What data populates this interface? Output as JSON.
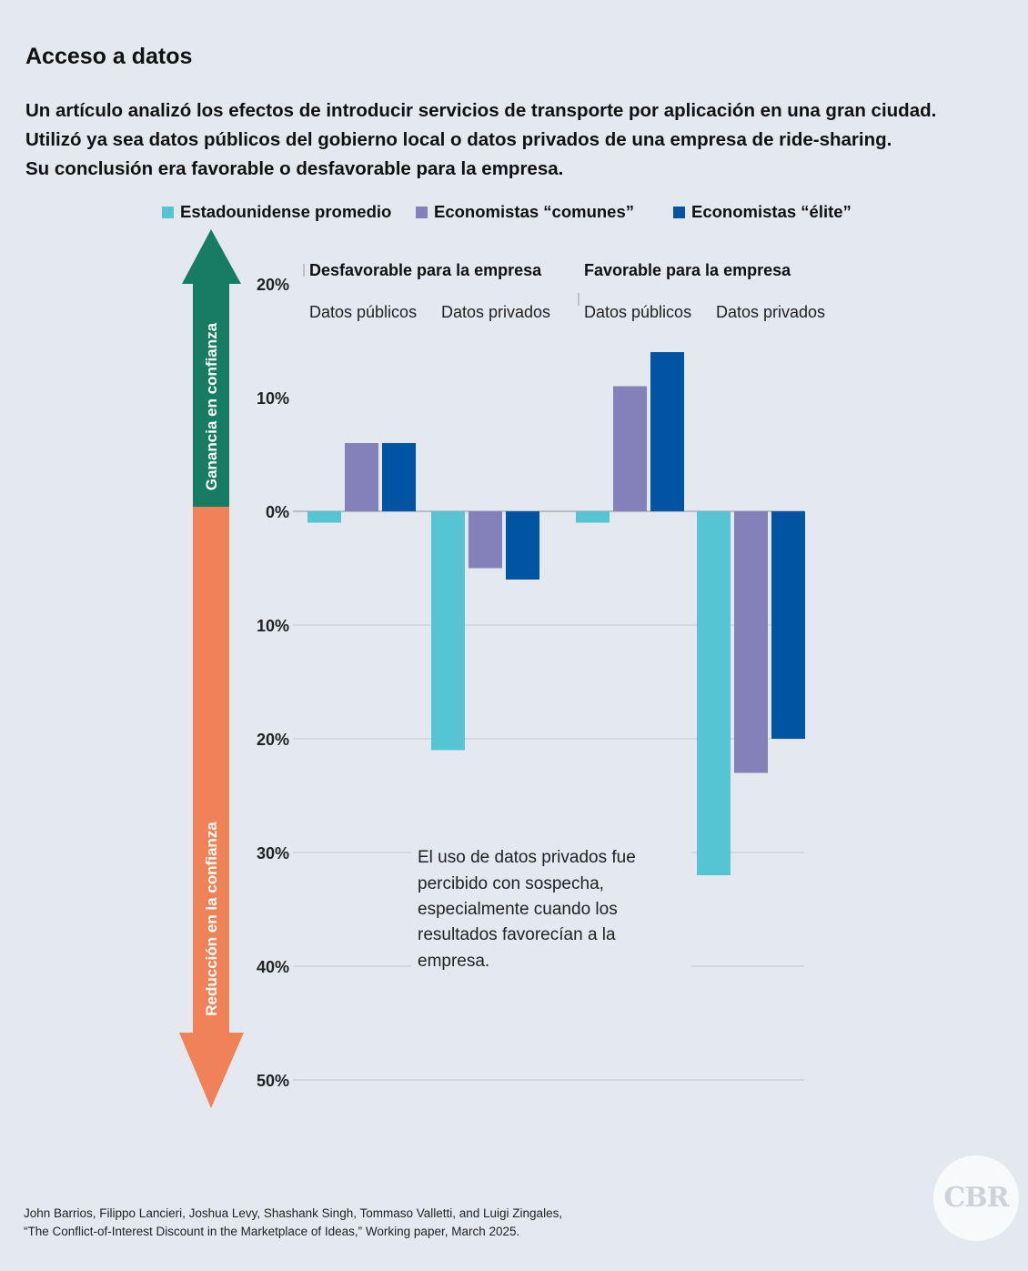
{
  "title": "Acceso a datos",
  "description": [
    "Un artículo analizó los efectos de introducir servicios de transporte por aplicación en una gran ciudad.",
    "Utilizó ya sea datos públicos del gobierno local o datos privados de una empresa de ride-sharing.",
    " Su conclusión era favorable o desfavorable para la empresa."
  ],
  "legend": [
    {
      "label": "Estadounidense promedio",
      "color": "#56c5d3"
    },
    {
      "label": "Economistas “comunes”",
      "color": "#8480ba"
    },
    {
      "label": "Economistas “élite”",
      "color": "#0054a4"
    }
  ],
  "arrows": {
    "up_label": "Ganancia en confianza",
    "down_label": "Reducción en la confianza",
    "up_color": "#177d62",
    "down_color": "#f0825a"
  },
  "annotation": [
    "El uso de datos privados fue",
    "percibido con sospecha,",
    "especialmente cuando los",
    "resultados favorecían a la",
    "empresa."
  ],
  "source": [
    "John Barrios, Filippo Lancieri, Joshua Levy, Shashank Singh, Tommaso Valletti, and Luigi Zingales,",
    "“The Conflict-of-Interest Discount in the Marketplace of Ideas,” Working paper, March 2025."
  ],
  "logo_text": "CBR",
  "chart_data": {
    "type": "bar",
    "ylim": [
      -50,
      20
    ],
    "yticks": [
      {
        "value": 20,
        "label": "20%"
      },
      {
        "value": 10,
        "label": "10%"
      },
      {
        "value": 0,
        "label": "0%"
      },
      {
        "value": -10,
        "label": "10%"
      },
      {
        "value": -20,
        "label": "20%"
      },
      {
        "value": -30,
        "label": "30%"
      },
      {
        "value": -40,
        "label": "40%"
      },
      {
        "value": -50,
        "label": "50%"
      }
    ],
    "groups": [
      {
        "label": "Desfavorable para la empresa",
        "subcategories": [
          "Datos públicos",
          "Datos privados"
        ]
      },
      {
        "label": "Favorable para la empresa",
        "subcategories": [
          "Datos públicos",
          "Datos privados"
        ]
      }
    ],
    "series": [
      {
        "name": "Estadounidense promedio",
        "values": [
          -1,
          -21,
          -1,
          -32
        ]
      },
      {
        "name": "Economistas “comunes”",
        "values": [
          6,
          -5,
          11,
          -23
        ]
      },
      {
        "name": "Economistas “élite”",
        "values": [
          6,
          -6,
          14,
          -20
        ]
      }
    ]
  }
}
